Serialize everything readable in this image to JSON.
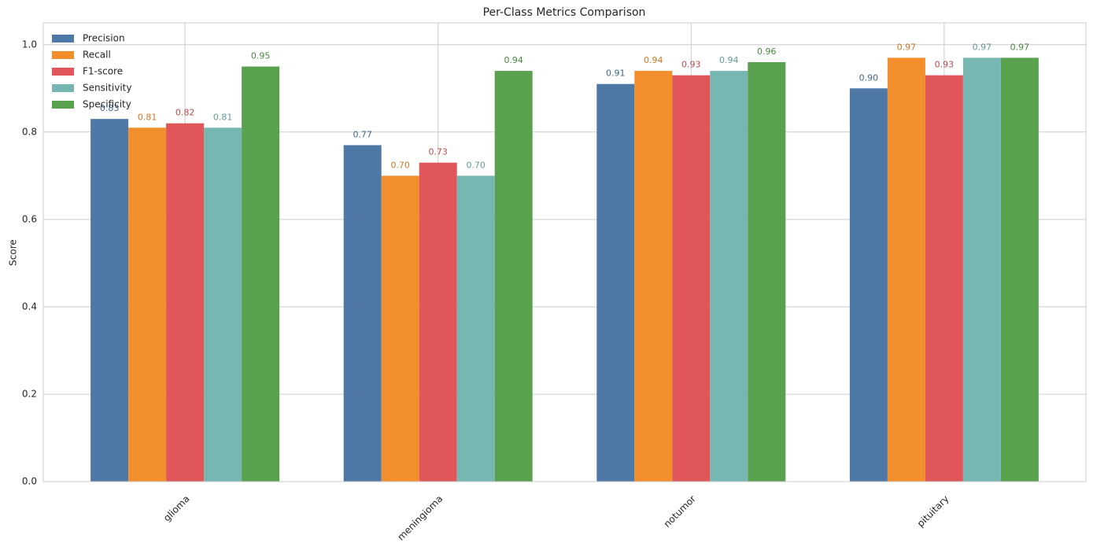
{
  "chart_data": {
    "type": "bar",
    "title": "Per-Class Metrics Comparison",
    "y_label": "Score",
    "categories": [
      "glioma",
      "meningioma",
      "notumor",
      "pituitary"
    ],
    "series": [
      {
        "name": "Precision",
        "color": "#4e79a7",
        "values": [
          0.83,
          0.77,
          0.91,
          0.9
        ],
        "value_labels": [
          "0.83",
          "0.77",
          "0.91",
          "0.90"
        ]
      },
      {
        "name": "Recall",
        "color": "#f28e2b",
        "values": [
          0.81,
          0.7,
          0.94,
          0.97
        ],
        "value_labels": [
          "0.81",
          "0.70",
          "0.94",
          "0.97"
        ]
      },
      {
        "name": "F1-score",
        "color": "#e15759",
        "values": [
          0.82,
          0.73,
          0.93,
          0.93
        ],
        "value_labels": [
          "0.82",
          "0.73",
          "0.93",
          "0.93"
        ]
      },
      {
        "name": "Sensitivity",
        "color": "#76b7b2",
        "values": [
          0.81,
          0.7,
          0.94,
          0.97
        ],
        "value_labels": [
          "0.81",
          "0.70",
          "0.94",
          "0.97"
        ]
      },
      {
        "name": "Specificity",
        "color": "#59a14f",
        "values": [
          0.95,
          0.94,
          0.96,
          0.97
        ],
        "value_labels": [
          "0.95",
          "0.94",
          "0.96",
          "0.97"
        ]
      }
    ],
    "ylim": [
      0,
      1.05
    ],
    "yticks": [
      {
        "value": 0,
        "label": "0.0"
      },
      0.2,
      0.4,
      0.6,
      0.8,
      {
        "value": 1,
        "label": "1.0"
      }
    ],
    "grid": true,
    "legend": "upper left"
  }
}
